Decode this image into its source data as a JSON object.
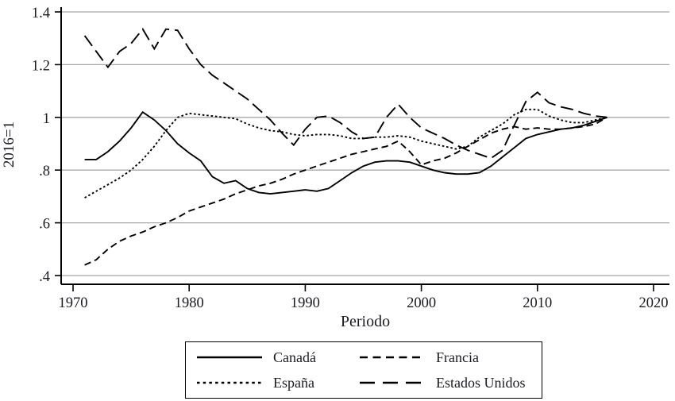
{
  "chart_data": {
    "type": "line",
    "title": "",
    "xlabel": "Periodo",
    "ylabel": "2016=1",
    "grid": "horizontal-only",
    "legend_position": "bottom-box",
    "line_color": "#000000",
    "grid_color": "#a8a8a8",
    "xlim": [
      1969,
      2021.5
    ],
    "ylim": [
      0.37,
      1.42
    ],
    "x_ticks": [
      1970,
      1980,
      1990,
      2000,
      2010,
      2020
    ],
    "y_ticks": [
      {
        "label": ".4",
        "value": 0.4
      },
      {
        "label": ".6",
        "value": 0.6
      },
      {
        "label": ".8",
        "value": 0.8
      },
      {
        "label": "1",
        "value": 1.0
      },
      {
        "label": "1.2",
        "value": 1.2
      },
      {
        "label": "1.4",
        "value": 1.4
      }
    ],
    "x": [
      1971,
      1972,
      1973,
      1974,
      1975,
      1976,
      1977,
      1978,
      1979,
      1980,
      1981,
      1982,
      1983,
      1984,
      1985,
      1986,
      1987,
      1988,
      1989,
      1990,
      1991,
      1992,
      1993,
      1994,
      1995,
      1996,
      1997,
      1998,
      1999,
      2000,
      2001,
      2002,
      2003,
      2004,
      2005,
      2006,
      2007,
      2008,
      2009,
      2010,
      2011,
      2012,
      2013,
      2014,
      2015,
      2016
    ],
    "series": [
      {
        "name": "Canadá",
        "line_style": "solid",
        "values": [
          0.84,
          0.84,
          0.87,
          0.91,
          0.96,
          1.02,
          0.99,
          0.95,
          0.9,
          0.865,
          0.835,
          0.775,
          0.75,
          0.76,
          0.73,
          0.715,
          0.71,
          0.715,
          0.72,
          0.725,
          0.72,
          0.73,
          0.76,
          0.79,
          0.815,
          0.83,
          0.835,
          0.835,
          0.83,
          0.815,
          0.8,
          0.79,
          0.785,
          0.785,
          0.79,
          0.815,
          0.85,
          0.885,
          0.92,
          0.935,
          0.945,
          0.955,
          0.96,
          0.97,
          0.985,
          1.0
        ]
      },
      {
        "name": "España",
        "line_style": "dotted",
        "values": [
          0.695,
          0.72,
          0.745,
          0.77,
          0.8,
          0.84,
          0.89,
          0.95,
          1.0,
          1.015,
          1.01,
          1.005,
          1.0,
          0.995,
          0.975,
          0.96,
          0.95,
          0.945,
          0.935,
          0.93,
          0.935,
          0.935,
          0.93,
          0.92,
          0.92,
          0.925,
          0.925,
          0.93,
          0.925,
          0.91,
          0.9,
          0.89,
          0.88,
          0.89,
          0.925,
          0.95,
          0.975,
          1.01,
          1.03,
          1.03,
          1.005,
          0.99,
          0.98,
          0.98,
          0.99,
          1.0
        ]
      },
      {
        "name": "Francia",
        "line_style": "dashed",
        "values": [
          0.44,
          0.46,
          0.5,
          0.53,
          0.55,
          0.565,
          0.585,
          0.6,
          0.62,
          0.645,
          0.66,
          0.675,
          0.69,
          0.71,
          0.725,
          0.74,
          0.75,
          0.765,
          0.785,
          0.8,
          0.815,
          0.83,
          0.845,
          0.86,
          0.87,
          0.88,
          0.89,
          0.91,
          0.87,
          0.82,
          0.835,
          0.845,
          0.865,
          0.89,
          0.915,
          0.94,
          0.955,
          0.965,
          0.955,
          0.96,
          0.955,
          0.955,
          0.96,
          0.965,
          0.975,
          1.0
        ]
      },
      {
        "name": "Estados Unidos",
        "line_style": "long-dash",
        "values": [
          1.31,
          1.25,
          1.19,
          1.25,
          1.28,
          1.335,
          1.26,
          1.335,
          1.33,
          1.26,
          1.2,
          1.16,
          1.13,
          1.1,
          1.07,
          1.03,
          0.99,
          0.94,
          0.895,
          0.955,
          1.0,
          1.005,
          0.98,
          0.945,
          0.92,
          0.925,
          1.0,
          1.05,
          1.0,
          0.96,
          0.94,
          0.92,
          0.895,
          0.875,
          0.86,
          0.845,
          0.875,
          0.97,
          1.06,
          1.095,
          1.055,
          1.04,
          1.03,
          1.015,
          1.005,
          1.0
        ]
      }
    ]
  },
  "legend": {
    "entries": [
      {
        "label": "Canadá",
        "style": "solid"
      },
      {
        "label": "Francia",
        "style": "dash"
      },
      {
        "label": "España",
        "style": "dot"
      },
      {
        "label": "Estados Unidos",
        "style": "longdash"
      }
    ]
  }
}
